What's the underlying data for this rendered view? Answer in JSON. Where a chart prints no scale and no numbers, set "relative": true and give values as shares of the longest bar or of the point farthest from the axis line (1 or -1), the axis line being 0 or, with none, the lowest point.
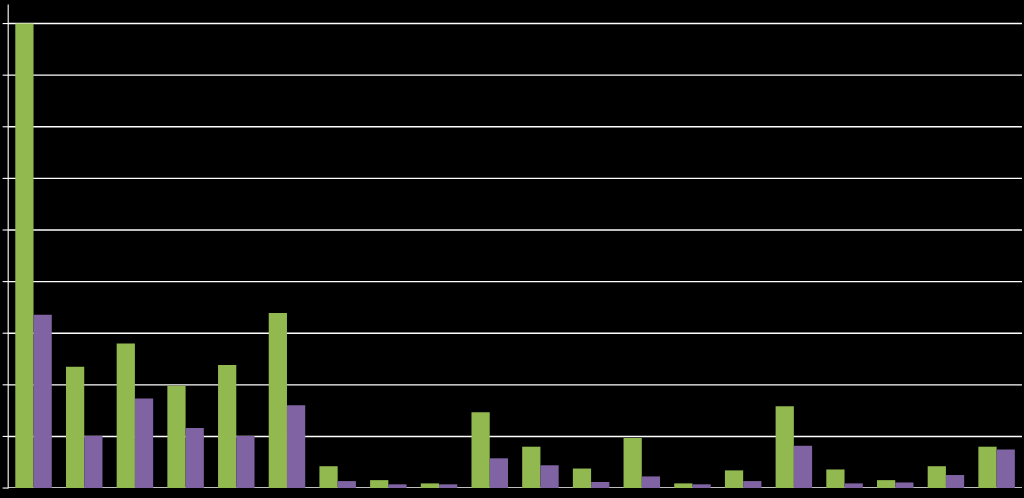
{
  "chart_data": {
    "type": "bar",
    "relative": true,
    "grid": "y",
    "categories": [
      null,
      null,
      null,
      null,
      null,
      null,
      null,
      null,
      null,
      null,
      null,
      null,
      null,
      null,
      null,
      null,
      null,
      null,
      null,
      null
    ],
    "series": [
      {
        "color": "#92b94f",
        "values": [
          1,
          0.261,
          0.311,
          0.22,
          0.265,
          0.377,
          0.047,
          0.017,
          0.01,
          0.163,
          0.089,
          0.042,
          0.108,
          0.01,
          0.038,
          0.176,
          0.04,
          0.017,
          0.047,
          0.089
        ]
      },
      {
        "color": "#7f63a3",
        "values": [
          0.373,
          0.112,
          0.193,
          0.129,
          0.112,
          0.178,
          0.015,
          0.008,
          0.008,
          0.064,
          0.049,
          0.013,
          0.025,
          0.008,
          0.015,
          0.091,
          0.01,
          0.012,
          0.028,
          0.083
        ]
      }
    ]
  }
}
